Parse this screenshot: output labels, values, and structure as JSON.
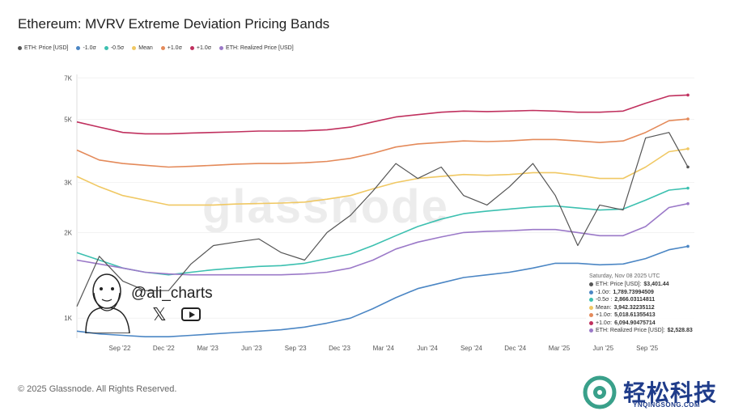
{
  "chart_data": {
    "type": "line",
    "title": "Ethereum: MVRV Extreme Deviation Pricing Bands",
    "x_ticks": [
      "Sep '22",
      "Dec '22",
      "Mar '23",
      "Jun '23",
      "Sep '23",
      "Dec '23",
      "Mar '24",
      "Jun '24",
      "Sep '24",
      "Dec '24",
      "Mar '25",
      "Jun '25",
      "Sep '25"
    ],
    "y_ticks": [
      1000,
      2000,
      3000,
      5000,
      7000
    ],
    "y_tick_labels": [
      "1K",
      "2K",
      "3K",
      "5K",
      "7K"
    ],
    "y_scale": "log",
    "ylim": [
      850,
      7200
    ],
    "legend_position": "top-left",
    "x": [
      "2022-07-01",
      "2022-08-15",
      "2022-10-01",
      "2022-11-15",
      "2023-01-01",
      "2023-02-15",
      "2023-04-01",
      "2023-05-15",
      "2023-07-01",
      "2023-08-15",
      "2023-10-01",
      "2023-11-15",
      "2024-01-01",
      "2024-02-15",
      "2024-04-01",
      "2024-05-15",
      "2024-07-01",
      "2024-08-15",
      "2024-10-01",
      "2024-11-15",
      "2025-01-01",
      "2025-02-15",
      "2025-04-01",
      "2025-05-15",
      "2025-07-01",
      "2025-08-15",
      "2025-10-01",
      "2025-11-08"
    ],
    "series": [
      {
        "name": "ETH: Price [USD]",
        "color": "#555555",
        "values": [
          1100,
          1650,
          1350,
          1250,
          1250,
          1550,
          1800,
          1850,
          1900,
          1700,
          1600,
          2000,
          2300,
          2800,
          3500,
          3100,
          3400,
          2700,
          2500,
          2900,
          3500,
          2700,
          1800,
          2500,
          2400,
          4300,
          4500,
          3401
        ]
      },
      {
        "name": "-1.0σ",
        "color": "#4b86c4",
        "values": [
          900,
          880,
          870,
          860,
          860,
          870,
          880,
          890,
          900,
          910,
          930,
          960,
          1000,
          1080,
          1180,
          1270,
          1330,
          1390,
          1420,
          1450,
          1500,
          1560,
          1560,
          1540,
          1550,
          1620,
          1740,
          1789
        ]
      },
      {
        "name": "-0.5σ",
        "color": "#3cc0b0",
        "values": [
          1700,
          1600,
          1500,
          1450,
          1420,
          1450,
          1480,
          1500,
          1520,
          1530,
          1560,
          1620,
          1680,
          1800,
          1950,
          2100,
          2230,
          2330,
          2380,
          2420,
          2460,
          2480,
          2440,
          2400,
          2420,
          2600,
          2820,
          2866
        ]
      },
      {
        "name": "Mean",
        "color": "#f0c863",
        "values": [
          3150,
          2900,
          2700,
          2600,
          2500,
          2500,
          2500,
          2520,
          2530,
          2540,
          2560,
          2620,
          2700,
          2850,
          3000,
          3100,
          3150,
          3200,
          3180,
          3200,
          3250,
          3250,
          3180,
          3100,
          3100,
          3400,
          3850,
          3942
        ]
      },
      {
        "name": "+1.0σ",
        "color": "#e48a5a",
        "values": [
          3900,
          3600,
          3500,
          3450,
          3400,
          3420,
          3450,
          3480,
          3500,
          3500,
          3520,
          3560,
          3650,
          3800,
          4000,
          4100,
          4150,
          4200,
          4180,
          4200,
          4250,
          4250,
          4200,
          4150,
          4200,
          4500,
          4950,
          5018
        ]
      },
      {
        "name": "+1.0σ",
        "color": "#c0305e",
        "values": [
          4900,
          4700,
          4500,
          4450,
          4450,
          4480,
          4500,
          4520,
          4550,
          4550,
          4560,
          4600,
          4700,
          4900,
          5100,
          5200,
          5300,
          5350,
          5330,
          5350,
          5380,
          5350,
          5300,
          5300,
          5350,
          5700,
          6050,
          6094
        ]
      },
      {
        "name": "ETH: Realized Price [USD]",
        "color": "#9b79c8",
        "values": [
          1600,
          1550,
          1500,
          1450,
          1430,
          1420,
          1420,
          1420,
          1420,
          1420,
          1430,
          1450,
          1500,
          1600,
          1750,
          1850,
          1930,
          2000,
          2020,
          2030,
          2050,
          2050,
          2000,
          1950,
          1950,
          2100,
          2450,
          2528
        ]
      }
    ],
    "tooltip": {
      "date": "Saturday, Nov 08 2025 UTC",
      "rows": [
        {
          "label": "ETH: Price [USD]: ",
          "value": "$3,401.44",
          "color": "#555555"
        },
        {
          "label": "-1.0σ: ",
          "value": "1,789.73994509",
          "color": "#4b86c4"
        },
        {
          "label": "-0.5σ : ",
          "value": "2,866.03114811",
          "color": "#3cc0b0"
        },
        {
          "label": "Mean: ",
          "value": "3,942.32235112",
          "color": "#f0c863"
        },
        {
          "label": "+1.0σ: ",
          "value": "5,018.61355413",
          "color": "#e48a5a"
        },
        {
          "label": "+1.0σ: ",
          "value": "6,094.90475714",
          "color": "#c0305e"
        },
        {
          "label": "ETH: Realized Price [USD]: ",
          "value": "$2,528.83",
          "color": "#9b79c8"
        }
      ]
    }
  },
  "legend": [
    {
      "label": "ETH: Price [USD]",
      "color": "#555555"
    },
    {
      "label": "-1.0σ",
      "color": "#4b86c4"
    },
    {
      "label": "-0.5σ",
      "color": "#3cc0b0"
    },
    {
      "label": "Mean",
      "color": "#f0c863"
    },
    {
      "label": "+1.0σ",
      "color": "#e48a5a"
    },
    {
      "label": "+1.0σ",
      "color": "#c0305e"
    },
    {
      "label": "ETH: Realized Price [USD]",
      "color": "#9b79c8"
    }
  ],
  "watermark": "glassnode",
  "overlay": {
    "handle": "@ali_charts",
    "x_icon": "x-logo-icon",
    "youtube_icon": "youtube-icon"
  },
  "footer": "© 2025 Glassnode. All Rights Reserved.",
  "logo": {
    "text": "轻松科技",
    "sub": "YNQINGSONG.COM"
  }
}
